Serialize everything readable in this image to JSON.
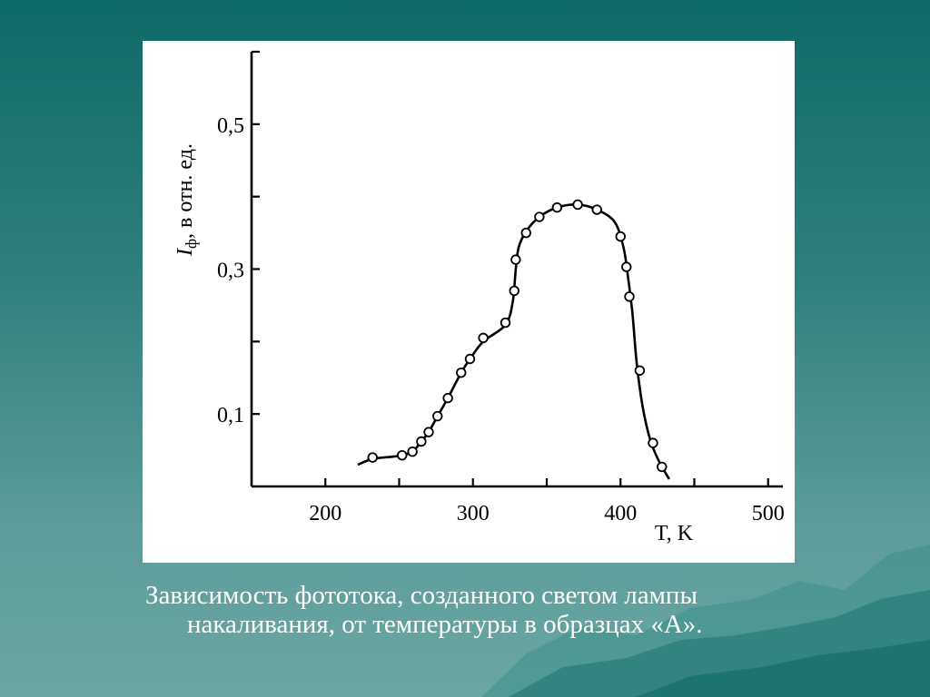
{
  "caption": {
    "line1": "Зависимость фототока, созданного светом лампы",
    "line2": "накаливания, от температуры в образцах «А»."
  },
  "colors": {
    "background_top": "#0e6a67",
    "background_bottom": "#6aa6a3",
    "panel": "#ffffff",
    "ink": "#000000",
    "caption_text": "#ffffff"
  },
  "chart_data": {
    "type": "line",
    "title": "",
    "xlabel": "T, K",
    "ylabel_main": "I",
    "ylabel_sub": "ф",
    "ylabel_rest": ", в отн. ед.",
    "xlim": [
      150,
      510
    ],
    "ylim": [
      0,
      0.6
    ],
    "x_ticks": [
      200,
      250,
      300,
      350,
      400,
      450,
      500
    ],
    "x_tick_labels": [
      "200",
      "300",
      "400",
      "500"
    ],
    "x_tick_label_values": [
      200,
      300,
      400,
      500
    ],
    "y_ticks": [
      0.1,
      0.2,
      0.3,
      0.4,
      0.5,
      0.6
    ],
    "y_tick_labels": [
      "0,1",
      "0,3",
      "0,5"
    ],
    "y_tick_label_values": [
      0.1,
      0.3,
      0.5
    ],
    "grid": false,
    "series": [
      {
        "points": [
          [
            232,
            0.04
          ],
          [
            252,
            0.043
          ],
          [
            259,
            0.048
          ],
          [
            265,
            0.062
          ],
          [
            270,
            0.075
          ],
          [
            276,
            0.097
          ],
          [
            283,
            0.122
          ],
          [
            292,
            0.157
          ],
          [
            298,
            0.176
          ],
          [
            307,
            0.205
          ],
          [
            322,
            0.226
          ],
          [
            328,
            0.27
          ],
          [
            329,
            0.313
          ],
          [
            336,
            0.35
          ],
          [
            345,
            0.372
          ],
          [
            357,
            0.385
          ],
          [
            371,
            0.389
          ],
          [
            384,
            0.382
          ],
          [
            400,
            0.345
          ],
          [
            404,
            0.303
          ],
          [
            406,
            0.262
          ],
          [
            413,
            0.16
          ],
          [
            422,
            0.06
          ],
          [
            428,
            0.027
          ]
        ],
        "curve": [
          [
            222,
            0.03
          ],
          [
            232,
            0.038
          ],
          [
            245,
            0.041
          ],
          [
            252,
            0.043
          ],
          [
            259,
            0.048
          ],
          [
            265,
            0.062
          ],
          [
            270,
            0.075
          ],
          [
            276,
            0.097
          ],
          [
            283,
            0.122
          ],
          [
            292,
            0.157
          ],
          [
            298,
            0.176
          ],
          [
            307,
            0.2
          ],
          [
            322,
            0.223
          ],
          [
            327,
            0.255
          ],
          [
            329,
            0.3
          ],
          [
            331,
            0.33
          ],
          [
            336,
            0.352
          ],
          [
            345,
            0.372
          ],
          [
            357,
            0.385
          ],
          [
            371,
            0.389
          ],
          [
            384,
            0.382
          ],
          [
            396,
            0.365
          ],
          [
            402,
            0.33
          ],
          [
            405,
            0.29
          ],
          [
            408,
            0.24
          ],
          [
            411,
            0.17
          ],
          [
            415,
            0.11
          ],
          [
            420,
            0.065
          ],
          [
            426,
            0.035
          ],
          [
            433,
            0.01
          ]
        ]
      }
    ]
  }
}
